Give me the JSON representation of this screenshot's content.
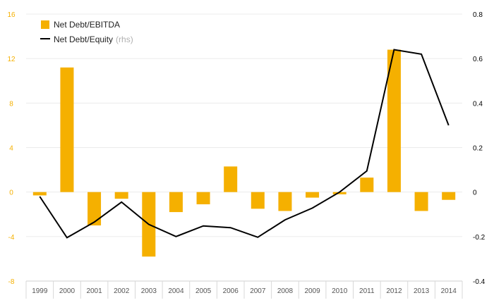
{
  "chart_data": {
    "type": "bar",
    "categories": [
      "1999",
      "2000",
      "2001",
      "2002",
      "2003",
      "2004",
      "2005",
      "2006",
      "2007",
      "2008",
      "2009",
      "2010",
      "2011",
      "2012",
      "2013",
      "2014"
    ],
    "series": [
      {
        "name": "Net Debt/EBITDA",
        "type": "bar",
        "axis": "left",
        "color": "#F5B000",
        "values": [
          -0.3,
          11.2,
          -3.0,
          -0.6,
          -5.8,
          -1.8,
          -1.1,
          2.3,
          -1.5,
          -1.7,
          -0.5,
          -0.2,
          1.3,
          12.8,
          -1.7,
          -0.7
        ]
      },
      {
        "name": "Net Debt/Equity",
        "name_suffix": "(rhs)",
        "type": "line",
        "axis": "right",
        "color": "#000000",
        "values": [
          -0.02,
          -0.205,
          -0.135,
          -0.045,
          -0.145,
          -0.2,
          -0.152,
          -0.16,
          -0.203,
          -0.125,
          -0.072,
          0.0,
          0.095,
          0.64,
          0.62,
          0.3
        ]
      }
    ],
    "yaxis_left": {
      "min": -8,
      "max": 16,
      "ticks": [
        "-8",
        "-4",
        "0",
        "4",
        "8",
        "12",
        "16"
      ],
      "color": "#F5B000"
    },
    "yaxis_right": {
      "min": -0.4,
      "max": 0.8,
      "ticks": [
        "-0.4",
        "-0.2",
        "0",
        "0.2",
        "0.4",
        "0.6",
        "0.8"
      ],
      "color": "#000000"
    },
    "grid": true,
    "legend_position": "top-left",
    "title": "",
    "xlabel": "",
    "ylabel": ""
  }
}
